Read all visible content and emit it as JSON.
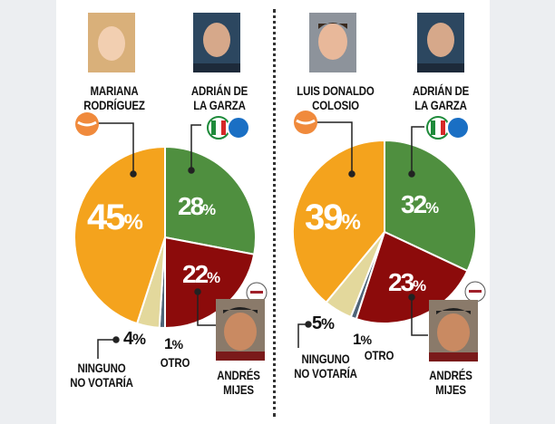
{
  "chart_data": [
    {
      "type": "pie",
      "start": "top",
      "direction": "clockwise",
      "slices": [
        {
          "label": "ADRIÁN DE LA GARZA",
          "value": 28,
          "text": "28%",
          "color": "#4f8f3f"
        },
        {
          "label": "ANDRÉS MIJES",
          "value": 22,
          "text": "22%",
          "color": "#8c0b0b"
        },
        {
          "label": "OTRO",
          "value": 1,
          "text": "1%",
          "color": "#4e6478"
        },
        {
          "label": "NINGUNO NO VOTARÍA",
          "value": 4,
          "text": "4%",
          "color": "#e3d89c"
        },
        {
          "label": "MARIANA RODRÍGUEZ",
          "value": 45,
          "text": "45%",
          "color": "#f4a31d"
        }
      ]
    },
    {
      "type": "pie",
      "start": "top",
      "direction": "clockwise",
      "slices": [
        {
          "label": "ADRIÁN DE LA GARZA",
          "value": 32,
          "text": "32%",
          "color": "#4f8f3f"
        },
        {
          "label": "ANDRÉS MIJES",
          "value": 23,
          "text": "23%",
          "color": "#8c0b0b"
        },
        {
          "label": "OTRO",
          "value": 1,
          "text": "1%",
          "color": "#4e6478"
        },
        {
          "label": "NINGUNO NO VOTARÍA",
          "value": 5,
          "text": "5%",
          "color": "#e3d89c"
        },
        {
          "label": "LUIS DONALDO COLOSIO",
          "value": 39,
          "text": "39%",
          "color": "#f4a31d"
        }
      ]
    }
  ],
  "left": {
    "c1": "MARIANA",
    "c1b": "RODRÍGUEZ",
    "c2": "ADRIÁN DE",
    "c2b": "LA GARZA",
    "c3": "ANDRÉS",
    "c3b": "MIJES",
    "n1": "NINGUNO",
    "n2": "NO VOTARÍA",
    "otro": "OTRO",
    "p_orange": "45",
    "p_green": "28",
    "p_red": "22",
    "p_ninguno": "4",
    "p_otro": "1",
    "pct": "%"
  },
  "right": {
    "c1": "LUIS DONALDO",
    "c1b": "COLOSIO",
    "c2": "ADRIÁN DE",
    "c2b": "LA GARZA",
    "c3": "ANDRÉS",
    "c3b": "MIJES",
    "n1": "NINGUNO",
    "n2": "NO VOTARÍA",
    "otro": "OTRO",
    "p_orange": "39",
    "p_green": "32",
    "p_red": "23",
    "p_ninguno": "5",
    "p_otro": "1",
    "pct": "%"
  },
  "logos": {
    "pri": "PRI",
    "pan": "PAN",
    "morena": "morena"
  }
}
